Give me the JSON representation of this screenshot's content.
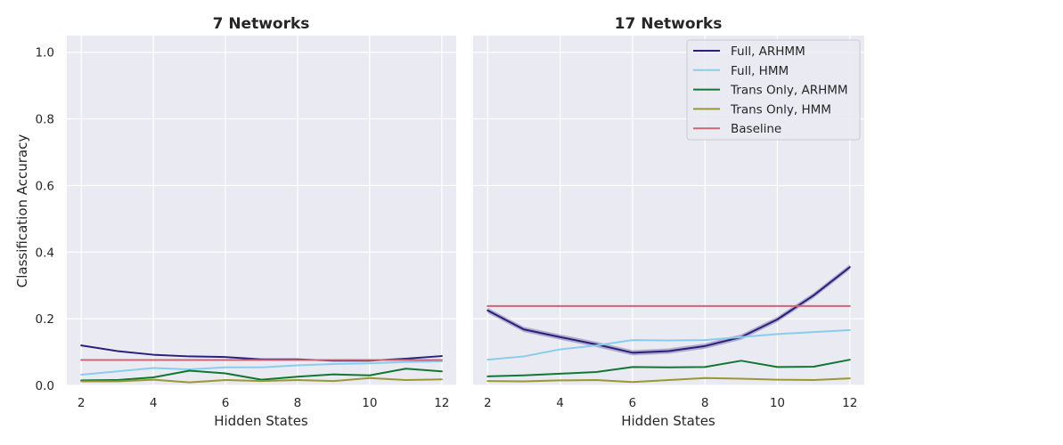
{
  "chart_data": [
    {
      "type": "line",
      "title": "7 Networks",
      "xlabel": "Hidden States",
      "ylabel": "Classification Accuracy",
      "x": [
        2,
        3,
        4,
        5,
        6,
        7,
        8,
        9,
        10,
        11,
        12
      ],
      "xticks": [
        "2",
        "4",
        "6",
        "8",
        "10",
        "12"
      ],
      "yticks": [
        "0.0",
        "0.2",
        "0.4",
        "0.6",
        "0.8",
        "1.0"
      ],
      "xlim": [
        1.6,
        12.4
      ],
      "ylim": [
        0.0,
        1.05
      ],
      "grid": true,
      "series": [
        {
          "name": "Full, ARHMM",
          "color": "#2b1f7a",
          "values": [
            0.12,
            0.103,
            0.092,
            0.087,
            0.085,
            0.078,
            0.078,
            0.074,
            0.074,
            0.08,
            0.088
          ]
        },
        {
          "name": "Full, HMM",
          "color": "#88ccee",
          "values": [
            0.032,
            0.042,
            0.052,
            0.048,
            0.054,
            0.054,
            0.06,
            0.064,
            0.066,
            0.07,
            0.072
          ]
        },
        {
          "name": "Trans Only, ARHMM",
          "color": "#117733",
          "values": [
            0.015,
            0.016,
            0.024,
            0.044,
            0.036,
            0.017,
            0.026,
            0.033,
            0.03,
            0.05,
            0.042
          ]
        },
        {
          "name": "Trans Only, HMM",
          "color": "#999933",
          "values": [
            0.012,
            0.012,
            0.017,
            0.009,
            0.016,
            0.013,
            0.016,
            0.013,
            0.022,
            0.016,
            0.018
          ]
        },
        {
          "name": "Baseline",
          "color": "#cc6677",
          "values": [
            0.076,
            0.076,
            0.076,
            0.076,
            0.076,
            0.076,
            0.076,
            0.076,
            0.076,
            0.076,
            0.076
          ]
        }
      ]
    },
    {
      "type": "line",
      "title": "17 Networks",
      "xlabel": "Hidden States",
      "ylabel": "",
      "x": [
        2,
        3,
        4,
        5,
        6,
        7,
        8,
        9,
        10,
        11,
        12
      ],
      "xticks": [
        "2",
        "4",
        "6",
        "8",
        "10",
        "12"
      ],
      "xlim": [
        1.6,
        12.4
      ],
      "ylim": [
        0.0,
        1.05
      ],
      "grid": true,
      "legend": "top-right",
      "series": [
        {
          "name": "Full, ARHMM",
          "color": "#2b1f7a",
          "values": [
            0.225,
            0.168,
            0.145,
            0.123,
            0.098,
            0.103,
            0.118,
            0.145,
            0.198,
            0.27,
            0.355
          ],
          "band": 0.008
        },
        {
          "name": "Full, HMM",
          "color": "#88ccee",
          "values": [
            0.077,
            0.087,
            0.108,
            0.12,
            0.136,
            0.135,
            0.136,
            0.145,
            0.154,
            0.16,
            0.166
          ]
        },
        {
          "name": "Trans Only, ARHMM",
          "color": "#117733",
          "values": [
            0.027,
            0.03,
            0.035,
            0.04,
            0.055,
            0.054,
            0.055,
            0.074,
            0.055,
            0.056,
            0.077
          ]
        },
        {
          "name": "Trans Only, HMM",
          "color": "#999933",
          "values": [
            0.013,
            0.012,
            0.015,
            0.016,
            0.01,
            0.016,
            0.022,
            0.02,
            0.017,
            0.016,
            0.021
          ]
        },
        {
          "name": "Baseline",
          "color": "#cc6677",
          "values": [
            0.238,
            0.238,
            0.238,
            0.238,
            0.238,
            0.238,
            0.238,
            0.238,
            0.238,
            0.238,
            0.238
          ]
        }
      ]
    }
  ],
  "legend": {
    "entries": [
      {
        "label": "Full, ARHMM",
        "color": "#2b1f7a"
      },
      {
        "label": "Full, HMM",
        "color": "#88ccee"
      },
      {
        "label": "Trans Only, ARHMM",
        "color": "#117733"
      },
      {
        "label": "Trans Only, HMM",
        "color": "#999933"
      },
      {
        "label": "Baseline",
        "color": "#cc6677"
      }
    ]
  },
  "style": {
    "plot_background": "#eaeaf2",
    "grid_color": "#ffffff"
  }
}
